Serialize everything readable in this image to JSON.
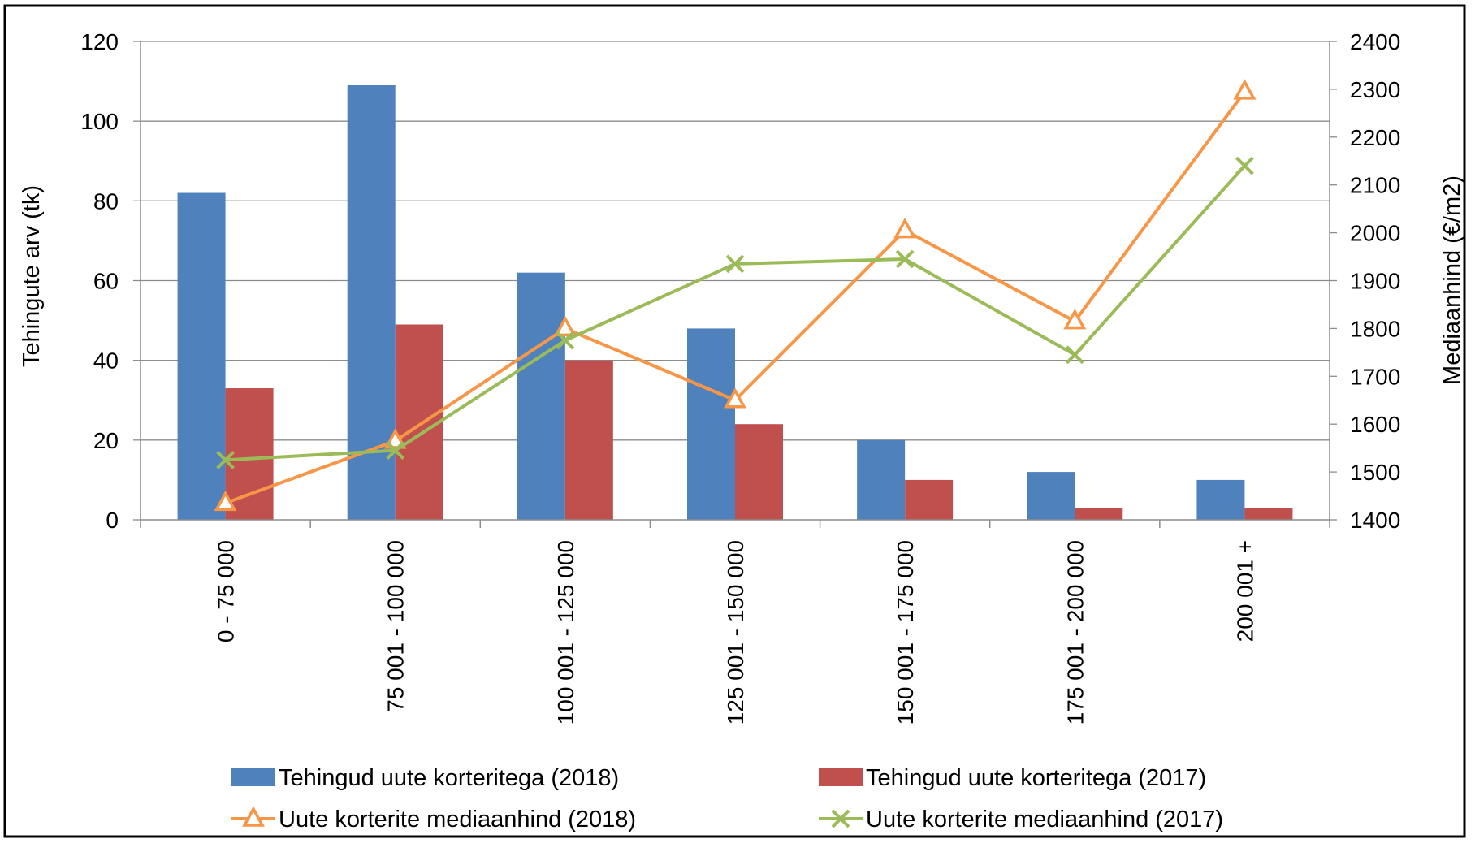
{
  "chart_data": {
    "type": "bar",
    "categories": [
      "0 - 75 000",
      "75 001 - 100 000",
      "100 001 - 125 000",
      "125 001 - 150 000",
      "150 001 - 175 000",
      "175 001 - 200 000",
      "200 001 +"
    ],
    "ylabel": "Tehingute arv (tk)",
    "ylabel_right": "Mediaanhind (€/m2)",
    "ylim": [
      0,
      120
    ],
    "y_ticks": [
      0,
      20,
      40,
      60,
      80,
      100,
      120
    ],
    "ylim_right": [
      1400,
      2400
    ],
    "y_ticks_right": [
      1400,
      1500,
      1600,
      1700,
      1800,
      1900,
      2000,
      2100,
      2200,
      2300,
      2400
    ],
    "grid": true,
    "legend_position": "bottom",
    "series": [
      {
        "name": "Tehingud uute korteritega (2018)",
        "type": "bar",
        "axis": "left",
        "color": "#4F81BD",
        "values": [
          82,
          109,
          62,
          48,
          20,
          12,
          10
        ]
      },
      {
        "name": "Tehingud uute korteritega (2017)",
        "type": "bar",
        "axis": "left",
        "color": "#C0504D",
        "values": [
          33,
          49,
          40,
          24,
          10,
          3,
          3
        ]
      },
      {
        "name": "Uute korterite mediaanhind (2018)",
        "type": "line",
        "axis": "right",
        "marker": "triangle",
        "color": "#F79646",
        "values": [
          1435,
          1565,
          1800,
          1650,
          2005,
          1815,
          2295
        ]
      },
      {
        "name": "Uute korterite mediaanhind (2017)",
        "type": "line",
        "axis": "right",
        "marker": "x",
        "color": "#9BBB59",
        "values": [
          1525,
          1545,
          1775,
          1935,
          1945,
          1745,
          2140
        ]
      }
    ]
  }
}
